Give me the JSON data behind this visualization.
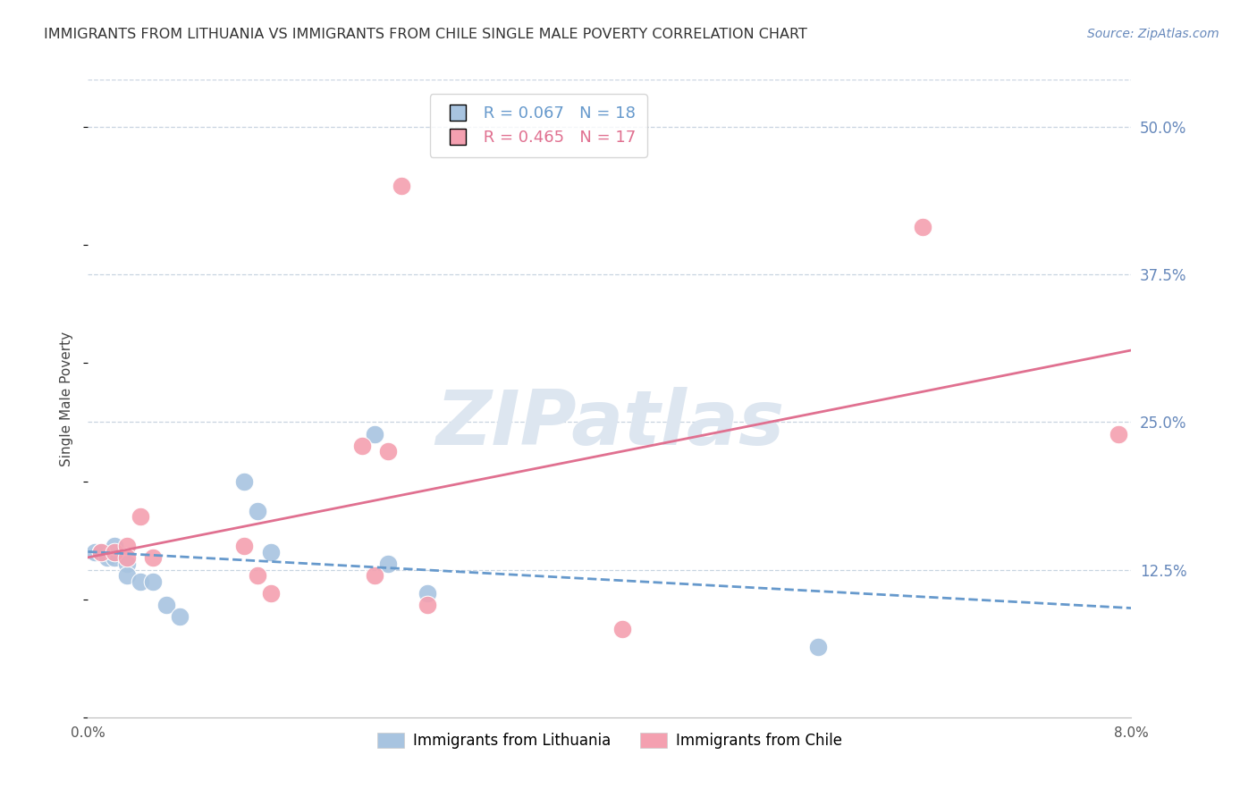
{
  "title": "IMMIGRANTS FROM LITHUANIA VS IMMIGRANTS FROM CHILE SINGLE MALE POVERTY CORRELATION CHART",
  "source_text": "Source: ZipAtlas.com",
  "ylabel": "Single Male Poverty",
  "xlim": [
    0.0,
    0.08
  ],
  "ylim": [
    0.0,
    0.54
  ],
  "yticks": [
    0.125,
    0.25,
    0.375,
    0.5
  ],
  "ytick_labels": [
    "12.5%",
    "25.0%",
    "37.5%",
    "50.0%"
  ],
  "lithuania_color": "#a8c4e0",
  "chile_color": "#f4a0b0",
  "lithuania_line_color": "#6699cc",
  "chile_line_color": "#e07090",
  "R_lithuania": 0.067,
  "N_lithuania": 18,
  "R_chile": 0.465,
  "N_chile": 17,
  "lithuania_x": [
    0.0005,
    0.001,
    0.0015,
    0.002,
    0.002,
    0.003,
    0.003,
    0.004,
    0.005,
    0.006,
    0.007,
    0.012,
    0.013,
    0.014,
    0.022,
    0.023,
    0.026,
    0.056
  ],
  "lithuania_y": [
    0.14,
    0.14,
    0.135,
    0.135,
    0.145,
    0.13,
    0.12,
    0.115,
    0.115,
    0.095,
    0.085,
    0.2,
    0.175,
    0.14,
    0.24,
    0.13,
    0.105,
    0.06
  ],
  "chile_x": [
    0.001,
    0.002,
    0.003,
    0.003,
    0.004,
    0.005,
    0.012,
    0.013,
    0.014,
    0.021,
    0.022,
    0.023,
    0.024,
    0.026,
    0.041,
    0.064,
    0.079
  ],
  "chile_y": [
    0.14,
    0.14,
    0.145,
    0.135,
    0.17,
    0.135,
    0.145,
    0.12,
    0.105,
    0.23,
    0.12,
    0.225,
    0.45,
    0.095,
    0.075,
    0.415,
    0.24
  ],
  "background_color": "#ffffff",
  "grid_color": "#c8d4e0",
  "title_color": "#333333",
  "axis_label_color": "#6688bb",
  "watermark_text": "ZIPatlas",
  "watermark_color": "#dde6f0",
  "source_color": "#6688bb"
}
